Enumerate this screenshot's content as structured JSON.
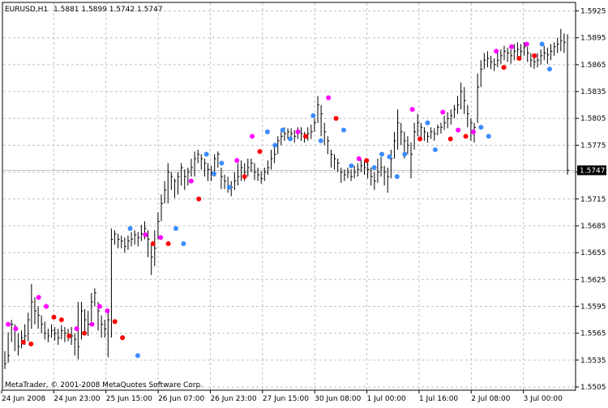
{
  "header": {
    "symbol_timeframe": "EURUSD,H1",
    "ohlc": "1.5881 1.5899 1.5742 1.5747"
  },
  "copyright": "MetaTrader, © 2001-2008 MetaQuotes Software Corp.",
  "current_price_label": "1.5747",
  "colors": {
    "bar": "#000000",
    "grid": "#c0c0c0",
    "frame": "#000000",
    "price_line": "#c0c0c0",
    "marker_red": "#ff0000",
    "marker_magenta": "#ff00ff",
    "marker_blue": "#3c8cff"
  },
  "chart_data": {
    "type": "ohlc",
    "ylim": [
      1.5505,
      1.593
    ],
    "y_ticks": [
      "1.5925",
      "1.5895",
      "1.5865",
      "1.5835",
      "1.5805",
      "1.5775",
      "1.5745",
      "1.5715",
      "1.5685",
      "1.5655",
      "1.5625",
      "1.5595",
      "1.5565",
      "1.5535",
      "1.5505"
    ],
    "x_tick_labels": [
      "24 Jun 2008",
      "24 Jun 23:00",
      "25 Jun 15:00",
      "26 Jun 07:00",
      "26 Jun 23:00",
      "27 Jun 15:00",
      "30 Jun 08:00",
      "1 Jul 00:00",
      "1 Jul 16:00",
      "2 Jul 08:00",
      "3 Jul 00:00"
    ],
    "current_price": 1.5747,
    "bars": [
      [
        1.5531,
        1.5525,
        1.5545
      ],
      [
        1.554,
        1.5532,
        1.5566
      ],
      [
        1.5575,
        1.5555,
        1.558
      ],
      [
        1.557,
        1.5545,
        1.5575
      ],
      [
        1.555,
        1.554,
        1.5565
      ],
      [
        1.556,
        1.5548,
        1.5568
      ],
      [
        1.5562,
        1.5552,
        1.5575
      ],
      [
        1.558,
        1.5556,
        1.5588
      ],
      [
        1.56,
        1.557,
        1.562
      ],
      [
        1.559,
        1.5575,
        1.5605
      ],
      [
        1.5585,
        1.557,
        1.5595
      ],
      [
        1.5575,
        1.5565,
        1.5585
      ],
      [
        1.5565,
        1.5558,
        1.5578
      ],
      [
        1.5562,
        1.5555,
        1.557
      ],
      [
        1.5568,
        1.556,
        1.5575
      ],
      [
        1.5565,
        1.5557,
        1.5572
      ],
      [
        1.556,
        1.5552,
        1.557
      ],
      [
        1.5568,
        1.5558,
        1.5574
      ],
      [
        1.5565,
        1.5555,
        1.5572
      ],
      [
        1.5563,
        1.5556,
        1.557
      ],
      [
        1.5562,
        1.5552,
        1.5572
      ],
      [
        1.5558,
        1.554,
        1.5565
      ],
      [
        1.555,
        1.5536,
        1.56
      ],
      [
        1.559,
        1.5558,
        1.56
      ],
      [
        1.558,
        1.5565,
        1.5592
      ],
      [
        1.5575,
        1.5562,
        1.559
      ],
      [
        1.56,
        1.5578,
        1.561
      ],
      [
        1.561,
        1.5595,
        1.5615
      ],
      [
        1.559,
        1.5568,
        1.56
      ],
      [
        1.5575,
        1.556,
        1.5585
      ],
      [
        1.557,
        1.556,
        1.558
      ],
      [
        1.558,
        1.5538,
        1.5588
      ],
      [
        1.567,
        1.556,
        1.5682
      ],
      [
        1.5676,
        1.5664,
        1.568
      ],
      [
        1.567,
        1.566,
        1.5676
      ],
      [
        1.5668,
        1.566,
        1.5674
      ],
      [
        1.5662,
        1.5655,
        1.5672
      ],
      [
        1.5668,
        1.5658,
        1.5674
      ],
      [
        1.567,
        1.5662,
        1.5678
      ],
      [
        1.5675,
        1.5664,
        1.568
      ],
      [
        1.5672,
        1.5662,
        1.5678
      ],
      [
        1.5676,
        1.5668,
        1.5686
      ],
      [
        1.5682,
        1.567,
        1.569
      ],
      [
        1.567,
        1.565,
        1.568
      ],
      [
        1.565,
        1.563,
        1.5665
      ],
      [
        1.566,
        1.564,
        1.568
      ],
      [
        1.569,
        1.567,
        1.57
      ],
      [
        1.571,
        1.569,
        1.572
      ],
      [
        1.5725,
        1.571,
        1.5735
      ],
      [
        1.5745,
        1.571,
        1.5755
      ],
      [
        1.574,
        1.5725,
        1.5745
      ],
      [
        1.5735,
        1.5716,
        1.5738
      ],
      [
        1.574,
        1.572,
        1.5745
      ],
      [
        1.575,
        1.573,
        1.5755
      ],
      [
        1.574,
        1.5725,
        1.5748
      ],
      [
        1.5745,
        1.573,
        1.575
      ],
      [
        1.575,
        1.574,
        1.576
      ],
      [
        1.576,
        1.574,
        1.5768
      ],
      [
        1.5765,
        1.5755,
        1.577
      ],
      [
        1.576,
        1.5748,
        1.5765
      ],
      [
        1.5755,
        1.574,
        1.576
      ],
      [
        1.5748,
        1.5735,
        1.5755
      ],
      [
        1.5745,
        1.5735,
        1.5752
      ],
      [
        1.576,
        1.574,
        1.5765
      ],
      [
        1.5765,
        1.575,
        1.5768
      ],
      [
        1.574,
        1.5726,
        1.575
      ],
      [
        1.5735,
        1.5726,
        1.5742
      ],
      [
        1.573,
        1.5722,
        1.574
      ],
      [
        1.5728,
        1.5718,
        1.5735
      ],
      [
        1.5735,
        1.5725,
        1.5745
      ],
      [
        1.574,
        1.573,
        1.5755
      ],
      [
        1.575,
        1.5735,
        1.5758
      ],
      [
        1.5745,
        1.5735,
        1.5755
      ],
      [
        1.575,
        1.574,
        1.576
      ],
      [
        1.5755,
        1.5745,
        1.576
      ],
      [
        1.5745,
        1.5736,
        1.5755
      ],
      [
        1.5742,
        1.5735,
        1.575
      ],
      [
        1.5738,
        1.5732,
        1.5746
      ],
      [
        1.5745,
        1.5735,
        1.575
      ],
      [
        1.575,
        1.5742,
        1.5758
      ],
      [
        1.576,
        1.5748,
        1.577
      ],
      [
        1.5765,
        1.5755,
        1.5775
      ],
      [
        1.578,
        1.5765,
        1.5785
      ],
      [
        1.5785,
        1.5775,
        1.579
      ],
      [
        1.5788,
        1.578,
        1.5795
      ],
      [
        1.579,
        1.5782,
        1.5794
      ],
      [
        1.5788,
        1.578,
        1.5794
      ],
      [
        1.5785,
        1.5778,
        1.5792
      ],
      [
        1.579,
        1.5782,
        1.5795
      ],
      [
        1.5788,
        1.578,
        1.5795
      ],
      [
        1.5785,
        1.5778,
        1.579
      ],
      [
        1.5788,
        1.578,
        1.5795
      ],
      [
        1.579,
        1.5782,
        1.5798
      ],
      [
        1.58,
        1.579,
        1.5805
      ],
      [
        1.582,
        1.58,
        1.583
      ],
      [
        1.581,
        1.5785,
        1.582
      ],
      [
        1.579,
        1.5775,
        1.58
      ],
      [
        1.578,
        1.5765,
        1.5785
      ],
      [
        1.5765,
        1.575,
        1.577
      ],
      [
        1.576,
        1.5748,
        1.5765
      ],
      [
        1.5755,
        1.5745,
        1.576
      ],
      [
        1.5745,
        1.5733,
        1.575
      ],
      [
        1.5742,
        1.5735,
        1.5748
      ],
      [
        1.5745,
        1.5738,
        1.575
      ],
      [
        1.574,
        1.5735,
        1.5748
      ],
      [
        1.5745,
        1.5738,
        1.5752
      ],
      [
        1.5748,
        1.574,
        1.5755
      ],
      [
        1.5752,
        1.5745,
        1.576
      ],
      [
        1.575,
        1.5742,
        1.5758
      ],
      [
        1.5748,
        1.5738,
        1.5758
      ],
      [
        1.574,
        1.573,
        1.575
      ],
      [
        1.5735,
        1.5725,
        1.5745
      ],
      [
        1.5745,
        1.5733,
        1.576
      ],
      [
        1.575,
        1.574,
        1.5762
      ],
      [
        1.5745,
        1.573,
        1.5752
      ],
      [
        1.574,
        1.5722,
        1.575
      ],
      [
        1.576,
        1.5738,
        1.577
      ],
      [
        1.578,
        1.576,
        1.579
      ],
      [
        1.58,
        1.577,
        1.5815
      ],
      [
        1.579,
        1.5775,
        1.58
      ],
      [
        1.578,
        1.576,
        1.579
      ],
      [
        1.5775,
        1.5765,
        1.5785
      ],
      [
        1.5765,
        1.5738,
        1.5778
      ],
      [
        1.579,
        1.577,
        1.58
      ],
      [
        1.58,
        1.5785,
        1.581
      ],
      [
        1.5795,
        1.578,
        1.58
      ],
      [
        1.579,
        1.578,
        1.5795
      ],
      [
        1.5785,
        1.5778,
        1.579
      ],
      [
        1.579,
        1.5782,
        1.5795
      ],
      [
        1.5788,
        1.578,
        1.5794
      ],
      [
        1.5795,
        1.5786,
        1.5798
      ],
      [
        1.5795,
        1.5788,
        1.58
      ],
      [
        1.58,
        1.5792,
        1.5808
      ],
      [
        1.5805,
        1.5794,
        1.5812
      ],
      [
        1.5808,
        1.5798,
        1.5815
      ],
      [
        1.5815,
        1.5805,
        1.582
      ],
      [
        1.582,
        1.581,
        1.583
      ],
      [
        1.5835,
        1.5815,
        1.5845
      ],
      [
        1.5825,
        1.581,
        1.584
      ],
      [
        1.581,
        1.5795,
        1.582
      ],
      [
        1.58,
        1.578,
        1.5805
      ],
      [
        1.5795,
        1.5778,
        1.58
      ],
      [
        1.584,
        1.58,
        1.5855
      ],
      [
        1.586,
        1.584,
        1.587
      ],
      [
        1.587,
        1.586,
        1.5878
      ],
      [
        1.5872,
        1.5862,
        1.588
      ],
      [
        1.5868,
        1.586,
        1.5875
      ],
      [
        1.5865,
        1.5858,
        1.5872
      ],
      [
        1.587,
        1.5862,
        1.5878
      ],
      [
        1.5875,
        1.5866,
        1.5882
      ],
      [
        1.588,
        1.587,
        1.5886
      ],
      [
        1.5878,
        1.5868,
        1.5884
      ],
      [
        1.5875,
        1.5866,
        1.5882
      ],
      [
        1.588,
        1.587,
        1.5888
      ],
      [
        1.5882,
        1.5872,
        1.589
      ],
      [
        1.588,
        1.587,
        1.5888
      ],
      [
        1.5885,
        1.5875,
        1.589
      ],
      [
        1.5878,
        1.5868,
        1.5885
      ],
      [
        1.587,
        1.5862,
        1.5878
      ],
      [
        1.5868,
        1.586,
        1.5875
      ],
      [
        1.587,
        1.5862,
        1.5878
      ],
      [
        1.5875,
        1.5865,
        1.5882
      ],
      [
        1.5878,
        1.587,
        1.5886
      ],
      [
        1.5876,
        1.5866,
        1.5884
      ],
      [
        1.588,
        1.587,
        1.5888
      ],
      [
        1.5885,
        1.5875,
        1.589
      ],
      [
        1.5888,
        1.5878,
        1.5895
      ],
      [
        1.5892,
        1.588,
        1.5905
      ],
      [
        1.589,
        1.5878,
        1.59
      ],
      [
        1.5747,
        1.5742,
        1.5899
      ]
    ],
    "markers": [
      {
        "color": "marker_magenta",
        "price": 1.5575
      },
      {
        "color": "marker_magenta",
        "price": 1.557
      },
      {
        "color": "marker_red",
        "price": 1.5555
      },
      {
        "color": "marker_red",
        "price": 1.5553
      },
      {
        "color": "marker_magenta",
        "price": 1.5605
      },
      {
        "color": "marker_magenta",
        "price": 1.5595
      },
      {
        "color": "marker_red",
        "price": 1.5583
      },
      {
        "color": "marker_red",
        "price": 1.558
      },
      {
        "color": "marker_red",
        "price": 1.5562
      },
      {
        "color": "marker_magenta",
        "price": 1.557
      },
      {
        "color": "marker_red",
        "price": 1.5565
      },
      {
        "color": "marker_magenta",
        "price": 1.5575
      },
      {
        "color": "marker_magenta",
        "price": 1.5595
      },
      {
        "color": "marker_magenta",
        "price": 1.559
      },
      {
        "color": "marker_red",
        "price": 1.5578
      },
      {
        "color": "marker_red",
        "price": 1.556
      },
      {
        "color": "marker_blue",
        "price": 1.5682
      },
      {
        "color": "marker_blue",
        "price": 1.554
      },
      {
        "color": "marker_magenta",
        "price": 1.5675
      },
      {
        "color": "marker_red",
        "price": 1.5665
      },
      {
        "color": "marker_magenta",
        "price": 1.5672
      },
      {
        "color": "marker_red",
        "price": 1.5665
      },
      {
        "color": "marker_blue",
        "price": 1.5682
      },
      {
        "color": "marker_blue",
        "price": 1.5665
      },
      {
        "color": "marker_magenta",
        "price": 1.5735
      },
      {
        "color": "marker_red",
        "price": 1.5715
      },
      {
        "color": "marker_blue",
        "price": 1.5765
      },
      {
        "color": "marker_blue",
        "price": 1.5743
      },
      {
        "color": "marker_blue",
        "price": 1.5755
      },
      {
        "color": "marker_blue",
        "price": 1.5728
      },
      {
        "color": "marker_magenta",
        "price": 1.5758
      },
      {
        "color": "marker_red",
        "price": 1.574
      },
      {
        "color": "marker_magenta",
        "price": 1.5785
      },
      {
        "color": "marker_red",
        "price": 1.5768
      },
      {
        "color": "marker_blue",
        "price": 1.579
      },
      {
        "color": "marker_blue",
        "price": 1.5775
      },
      {
        "color": "marker_blue",
        "price": 1.5792
      },
      {
        "color": "marker_blue",
        "price": 1.5782
      },
      {
        "color": "marker_magenta",
        "price": 1.579
      },
      {
        "color": "marker_red",
        "price": 1.5785
      },
      {
        "color": "marker_blue",
        "price": 1.5808
      },
      {
        "color": "marker_blue",
        "price": 1.578
      },
      {
        "color": "marker_magenta",
        "price": 1.5828
      },
      {
        "color": "marker_red",
        "price": 1.5805
      },
      {
        "color": "marker_blue",
        "price": 1.5792
      },
      {
        "color": "marker_blue",
        "price": 1.5752
      },
      {
        "color": "marker_magenta",
        "price": 1.576
      },
      {
        "color": "marker_red",
        "price": 1.5758
      },
      {
        "color": "marker_blue",
        "price": 1.575
      },
      {
        "color": "marker_blue",
        "price": 1.5765
      },
      {
        "color": "marker_blue",
        "price": 1.5762
      },
      {
        "color": "marker_blue",
        "price": 1.574
      },
      {
        "color": "marker_blue",
        "price": 1.5765
      },
      {
        "color": "marker_magenta",
        "price": 1.5815
      },
      {
        "color": "marker_red",
        "price": 1.5782
      },
      {
        "color": "marker_blue",
        "price": 1.58
      },
      {
        "color": "marker_blue",
        "price": 1.577
      },
      {
        "color": "marker_magenta",
        "price": 1.5812
      },
      {
        "color": "marker_red",
        "price": 1.5782
      },
      {
        "color": "marker_magenta",
        "price": 1.5792
      },
      {
        "color": "marker_red",
        "price": 1.5785
      },
      {
        "color": "marker_magenta",
        "price": 1.579
      },
      {
        "color": "marker_blue",
        "price": 1.5795
      },
      {
        "color": "marker_blue",
        "price": 1.5785
      },
      {
        "color": "marker_magenta",
        "price": 1.588
      },
      {
        "color": "marker_red",
        "price": 1.5862
      },
      {
        "color": "marker_magenta",
        "price": 1.5885
      },
      {
        "color": "marker_red",
        "price": 1.5872
      },
      {
        "color": "marker_magenta",
        "price": 1.5888
      },
      {
        "color": "marker_red",
        "price": 1.5875
      },
      {
        "color": "marker_blue",
        "price": 1.5888
      },
      {
        "color": "marker_blue",
        "price": 1.586
      }
    ]
  }
}
